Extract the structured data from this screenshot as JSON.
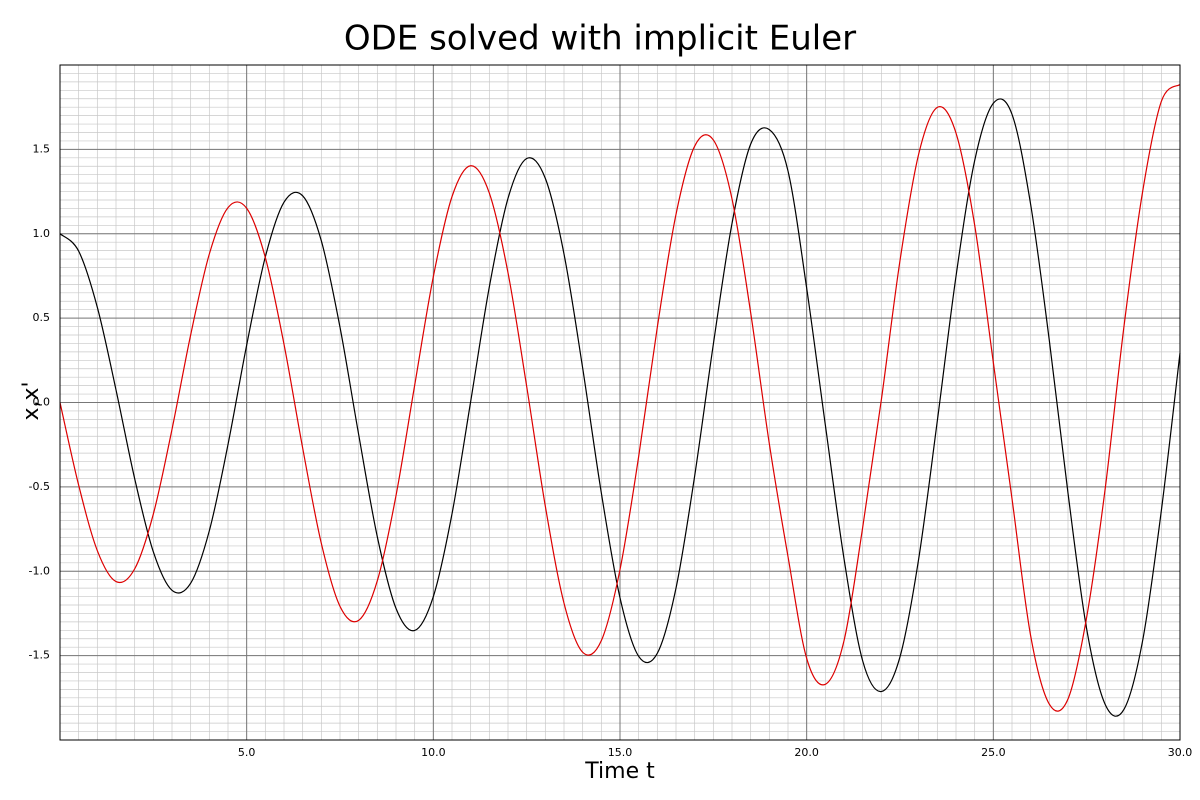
{
  "chart_data": {
    "type": "line",
    "title": "ODE solved with implicit Euler",
    "x_label": "Time t",
    "y_label": "x,x'",
    "x": [
      0,
      0.5,
      1,
      1.5,
      2,
      2.5,
      3,
      3.5,
      4,
      4.5,
      5,
      5.5,
      6,
      6.5,
      7,
      7.5,
      8,
      8.5,
      9,
      9.5,
      10,
      10.5,
      11,
      11.5,
      12,
      12.5,
      13,
      13.5,
      14,
      14.5,
      15,
      15.5,
      16,
      16.5,
      17,
      17.5,
      18,
      18.5,
      19,
      19.5,
      20,
      20.5,
      21,
      21.5,
      22,
      22.5,
      23,
      23.5,
      24,
      24.5,
      25,
      25.5,
      26,
      26.5,
      27,
      27.5,
      28,
      28.5,
      29,
      29.5,
      30
    ],
    "series": [
      {
        "color": "#000000",
        "values": [
          1.0,
          0.897,
          0.564,
          0.075,
          -0.451,
          -0.885,
          -1.113,
          -1.071,
          -0.76,
          -0.249,
          0.34,
          0.863,
          1.187,
          1.225,
          0.958,
          0.446,
          -0.19,
          -0.796,
          -1.22,
          -1.351,
          -1.15,
          -0.66,
          0.006,
          0.685,
          1.21,
          1.446,
          1.328,
          0.88,
          0.204,
          -0.536,
          -1.157,
          -1.504,
          -1.486,
          -1.1,
          -0.435,
          0.345,
          1.061,
          1.531,
          1.617,
          1.372,
          0.678,
          -0.133,
          -0.925,
          -1.531,
          -1.713,
          -1.507,
          -0.927,
          -0.108,
          0.748,
          1.433,
          1.773,
          1.708,
          1.173,
          0.367,
          -0.537,
          -1.342,
          -1.791,
          -1.818,
          -1.41,
          -0.641,
          0.294
        ]
      },
      {
        "color": "#dd0000",
        "values": [
          0.0,
          -0.49,
          -0.878,
          -1.061,
          -0.986,
          -0.661,
          -0.159,
          0.401,
          0.88,
          1.155,
          1.151,
          0.859,
          0.345,
          -0.27,
          -0.835,
          -1.208,
          -1.291,
          -1.056,
          -0.552,
          0.102,
          0.746,
          1.22,
          1.403,
          1.241,
          0.769,
          0.096,
          -0.615,
          -1.189,
          -1.48,
          -1.411,
          -0.99,
          -0.32,
          0.447,
          1.115,
          1.519,
          1.556,
          1.207,
          0.532,
          -0.245,
          -0.913,
          -1.516,
          -1.67,
          -1.412,
          -0.741,
          0.015,
          0.841,
          1.472,
          1.749,
          1.597,
          1.051,
          0.237,
          -0.57,
          -1.383,
          -1.788,
          -1.757,
          -1.272,
          -0.504,
          0.452,
          1.251,
          1.784,
          1.885
        ]
      }
    ],
    "xlim": [
      0,
      30
    ],
    "xticks": [
      {
        "value": 5,
        "label": "5.0"
      },
      {
        "value": 10,
        "label": "10.0"
      },
      {
        "value": 15,
        "label": "15.0"
      },
      {
        "value": 20,
        "label": "20.0"
      },
      {
        "value": 25,
        "label": "25.0"
      },
      {
        "value": 30,
        "label": "30.0"
      }
    ],
    "ylim": [
      -2,
      2
    ],
    "yticks": [
      -1.5,
      {
        "value": -1,
        "label": "-1.0"
      },
      -0.5,
      {
        "value": 0,
        "label": "0.0"
      },
      0.5,
      {
        "value": 1,
        "label": "1.0"
      },
      1.5
    ],
    "grid": true,
    "minor_grid": true
  }
}
